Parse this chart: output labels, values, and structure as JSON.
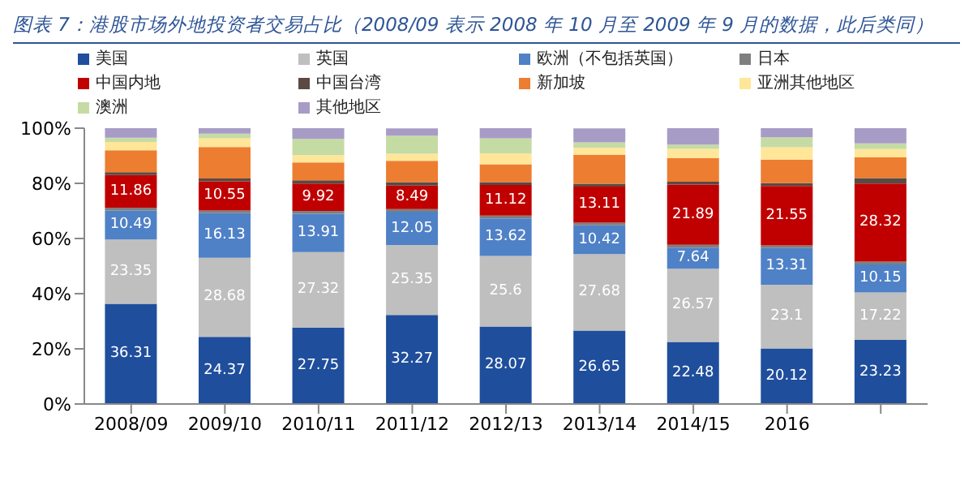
{
  "chart_data": {
    "type": "bar",
    "stacked": true,
    "title": "图表 7：港股市场外地投资者交易占比（2008/09 表示 2008 年 10 月至 2009 年 9 月的数据，此后类同）",
    "categories": [
      "2008/09",
      "2009/10",
      "2010/11",
      "2011/12",
      "2012/13",
      "2013/14",
      "2014/15",
      "2016",
      null
    ],
    "ylim": [
      0,
      100
    ],
    "yticks": [
      {
        "value": 0,
        "label": "0%"
      },
      {
        "value": 20,
        "label": "20%"
      },
      {
        "value": 40,
        "label": "40%"
      },
      {
        "value": 60,
        "label": "60%"
      },
      {
        "value": 80,
        "label": "80%"
      },
      {
        "value": 100,
        "label": "100%"
      }
    ],
    "grid": false,
    "legend": "top",
    "series": [
      {
        "name": "美国",
        "color": "#1f4e9c",
        "values": [
          36.31,
          24.37,
          27.75,
          32.27,
          28.07,
          26.65,
          22.48,
          20.12,
          23.23
        ],
        "value_labels": [
          "36.31",
          "24.37",
          "27.75",
          "32.27",
          "28.07",
          "26.65",
          "22.48",
          "20.12",
          "23.23"
        ]
      },
      {
        "name": "英国",
        "color": "#bfbfbf",
        "values": [
          23.35,
          28.68,
          27.32,
          25.35,
          25.6,
          27.68,
          26.57,
          23.1,
          17.22
        ],
        "value_labels": [
          "23.35",
          "28.68",
          "27.32",
          "25.35",
          "25.6",
          "27.68",
          "26.57",
          "23.1",
          "17.22"
        ]
      },
      {
        "name": "欧洲（不包括英国）",
        "color": "#4f81c7",
        "values": [
          10.49,
          16.13,
          13.91,
          12.05,
          13.62,
          10.42,
          7.64,
          13.31,
          10.15
        ],
        "value_labels": [
          "10.49",
          "16.13",
          "13.91",
          "12.05",
          "13.62",
          "10.42",
          "7.64",
          "13.31",
          "10.15"
        ]
      },
      {
        "name": "日本",
        "color": "#7f7f7f",
        "values": [
          1,
          1,
          1,
          1,
          1,
          1,
          1,
          1,
          1
        ]
      },
      {
        "name": "中国内地",
        "color": "#c00000",
        "values": [
          11.86,
          10.55,
          9.92,
          8.49,
          11.12,
          13.11,
          21.89,
          21.55,
          28.32
        ],
        "value_labels": [
          "11.86",
          "10.55",
          "9.92",
          "8.49",
          "11.12",
          "13.11",
          "21.89",
          "21.55",
          "28.32"
        ]
      },
      {
        "name": "中国台湾",
        "color": "#5a4a42",
        "values": [
          1,
          1,
          1.2,
          1.3,
          1,
          1,
          1,
          1,
          2
        ]
      },
      {
        "name": "新加坡",
        "color": "#ed7d31",
        "values": [
          8,
          11.4,
          6.5,
          7.7,
          6.5,
          10.5,
          8.6,
          8.5,
          7.5
        ]
      },
      {
        "name": "亚洲其他地区",
        "color": "#ffe699",
        "values": [
          3,
          3.2,
          2.6,
          2.6,
          3.9,
          2.5,
          3.3,
          4.5,
          3
        ]
      },
      {
        "name": "澳洲",
        "color": "#c5dba4",
        "values": [
          1.5,
          1.7,
          5.9,
          6.5,
          5.5,
          2,
          1.6,
          3.6,
          2.1
        ]
      },
      {
        "name": "其他地区",
        "color": "#a79cc6",
        "values": [
          3.5,
          2,
          3.9,
          2.7,
          3.7,
          5.1,
          5.9,
          3.3,
          5.5
        ]
      }
    ]
  }
}
